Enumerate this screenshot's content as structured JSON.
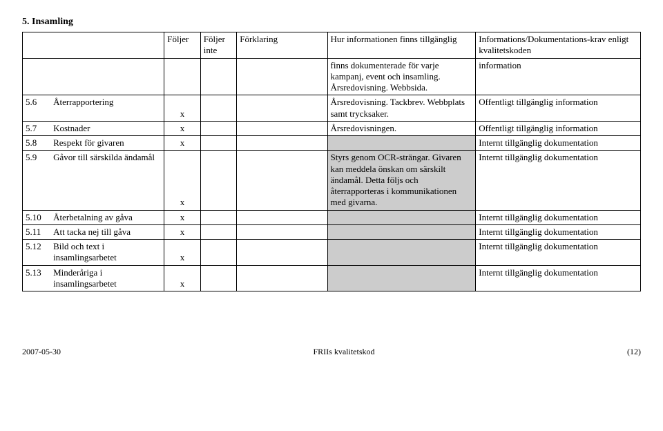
{
  "section_title": "5. Insamling",
  "headers": {
    "col3": "Följer",
    "col4": "Följer inte",
    "col5": "Förklaring",
    "col6": "Hur informationen finns tillgänglig",
    "col7": "Informations/Dokumentations-krav enligt kvalitetskoden"
  },
  "rows": [
    {
      "num": "",
      "label": "",
      "foljer": "",
      "foljer_inte": "",
      "forklaring": "",
      "hur": "finns dokumenterade för varje kampanj, event och insamling. Årsredovisning. Webbsida.",
      "krav": "information",
      "shaded": false
    },
    {
      "num": "5.6",
      "label": "Återrapportering",
      "foljer": "x",
      "foljer_inte": "",
      "forklaring": "",
      "hur": "Årsredovisning. Tackbrev. Webbplats samt trycksaker.",
      "krav": "Offentligt tillgänglig information",
      "shaded": false
    },
    {
      "num": "5.7",
      "label": "Kostnader",
      "foljer": "x",
      "foljer_inte": "",
      "forklaring": "",
      "hur": " Årsredovisningen.",
      "krav": "Offentligt tillgänglig information",
      "shaded": false
    },
    {
      "num": "5.8",
      "label": "Respekt för givaren",
      "foljer": "x",
      "foljer_inte": "",
      "forklaring": "",
      "hur": "",
      "krav": "Internt tillgänglig dokumentation",
      "shaded": true
    },
    {
      "num": "5.9",
      "label": "Gåvor till särskilda ändamål",
      "foljer": "x",
      "foljer_inte": "",
      "forklaring": "",
      "hur": " Styrs genom OCR-strängar. Givaren kan meddela önskan om särskilt ändamål. Detta följs och återrapporteras i kommunikationen med givarna.",
      "krav": "Internt tillgänglig dokumentation",
      "shaded": true
    },
    {
      "num": "5.10",
      "label": "Återbetalning av gåva",
      "foljer": "x",
      "foljer_inte": "",
      "forklaring": "",
      "hur": "",
      "krav": "Internt tillgänglig dokumentation",
      "shaded": true
    },
    {
      "num": "5.11",
      "label": "Att tacka nej till gåva",
      "foljer": "x",
      "foljer_inte": "",
      "forklaring": "",
      "hur": "",
      "krav": "Internt tillgänglig dokumentation",
      "shaded": true
    },
    {
      "num": "5.12",
      "label": "Bild och text i insamlingsarbetet",
      "foljer": "x",
      "foljer_inte": "",
      "forklaring": "",
      "hur": "",
      "krav": "Internt tillgänglig dokumentation",
      "shaded": true
    },
    {
      "num": "5.13",
      "label": "Minderåriga i insamlingsarbetet",
      "foljer": "x",
      "foljer_inte": "",
      "forklaring": "",
      "hur": "",
      "krav": "Internt tillgänglig dokumentation",
      "shaded": true
    }
  ],
  "footer": {
    "left": "2007-05-30",
    "center": "FRIIs kvalitetskod",
    "right": "(12)"
  },
  "colors": {
    "shaded": "#cccccc",
    "background": "#ffffff",
    "text": "#000000"
  }
}
